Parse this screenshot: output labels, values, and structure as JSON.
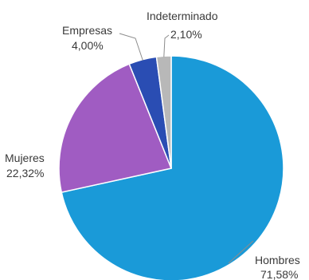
{
  "chart_data": {
    "type": "pie",
    "title": "",
    "start_angle_deg": 0,
    "direction": "clockwise",
    "slices": [
      {
        "label": "Hombres",
        "value": 71.58,
        "value_label": "71,58%",
        "color": "#1a9ad8"
      },
      {
        "label": "Mujeres",
        "value": 22.32,
        "value_label": "22,32%",
        "color": "#a05cc2"
      },
      {
        "label": "Empresas",
        "value": 4.0,
        "value_label": "4,00%",
        "color": "#2a4db3"
      },
      {
        "label": "Indeterminado",
        "value": 2.1,
        "value_label": "2,10%",
        "color": "#b8b8b8"
      }
    ],
    "legend": "none",
    "slice_border_color": "#ffffff"
  }
}
